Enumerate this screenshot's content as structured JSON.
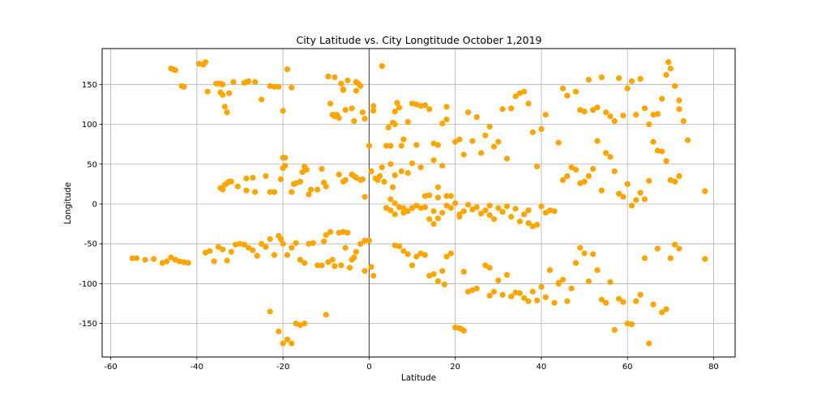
{
  "chart_data": {
    "type": "scatter",
    "title": "City Latitude vs. City Longtitude October 1,2019",
    "xlabel": "Latitude",
    "ylabel": "Longitude",
    "xlim": [
      -62,
      85
    ],
    "ylim": [
      -192,
      195
    ],
    "xticks": [
      -60,
      -40,
      -20,
      0,
      20,
      40,
      60,
      80
    ],
    "yticks": [
      -150,
      -100,
      -50,
      0,
      50,
      100,
      150
    ],
    "grid": true,
    "axvline": 0,
    "color": "#FFA500",
    "points": [
      [
        -46,
        170
      ],
      [
        -45.5,
        169
      ],
      [
        -45,
        168
      ],
      [
        -43.5,
        148
      ],
      [
        -43,
        147
      ],
      [
        -39.5,
        176
      ],
      [
        -38.5,
        175
      ],
      [
        -38,
        178
      ],
      [
        -37.5,
        141
      ],
      [
        -35.5,
        151
      ],
      [
        -35,
        151
      ],
      [
        -34.5,
        151
      ],
      [
        -34.5,
        140
      ],
      [
        -34,
        137
      ],
      [
        -34,
        150
      ],
      [
        -33.5,
        122
      ],
      [
        -33,
        115
      ],
      [
        -32.5,
        139
      ],
      [
        -31.5,
        153
      ],
      [
        -29,
        152
      ],
      [
        -28.5,
        153
      ],
      [
        -28,
        154
      ],
      [
        -26.5,
        153
      ],
      [
        -25,
        131
      ],
      [
        -23,
        148
      ],
      [
        -22,
        147
      ],
      [
        -20,
        117
      ],
      [
        -19,
        169
      ],
      [
        -18,
        146
      ],
      [
        -21,
        147
      ],
      [
        -34.5,
        20
      ],
      [
        -34,
        18
      ],
      [
        -33.5,
        24
      ],
      [
        -33,
        26
      ],
      [
        -32.5,
        28
      ],
      [
        -32,
        28
      ],
      [
        -30.5,
        22
      ],
      [
        -28.5,
        32
      ],
      [
        -28.5,
        17
      ],
      [
        -27,
        33
      ],
      [
        -26.5,
        15
      ],
      [
        -24,
        35
      ],
      [
        -23,
        15
      ],
      [
        -22,
        15
      ],
      [
        -20.5,
        31
      ],
      [
        -20,
        58
      ],
      [
        -19.5,
        58
      ],
      [
        -19.5,
        48
      ],
      [
        -20,
        45
      ],
      [
        -18,
        15
      ],
      [
        -17.5,
        25
      ],
      [
        -17,
        26
      ],
      [
        -16,
        28
      ],
      [
        -15.5,
        40
      ],
      [
        -15,
        47
      ],
      [
        -14.5,
        43
      ],
      [
        -14,
        12
      ],
      [
        -13.5,
        18
      ],
      [
        -12,
        18
      ],
      [
        -11,
        44
      ],
      [
        -10.5,
        27
      ],
      [
        -10,
        22
      ],
      [
        -9,
        126
      ],
      [
        -8.5,
        112
      ],
      [
        -8,
        110
      ],
      [
        -8,
        159
      ],
      [
        -7.5,
        112
      ],
      [
        -7,
        108
      ],
      [
        -6.5,
        151
      ],
      [
        -6,
        144
      ],
      [
        -6,
        143
      ],
      [
        -5.5,
        118
      ],
      [
        -5,
        155
      ],
      [
        -4,
        120
      ],
      [
        -3.5,
        104
      ],
      [
        -3,
        153
      ],
      [
        -3,
        142
      ],
      [
        -2.5,
        151
      ],
      [
        -2,
        148
      ],
      [
        -1.5,
        115
      ],
      [
        -1,
        107
      ],
      [
        -9.5,
        160
      ],
      [
        -7,
        37
      ],
      [
        -6,
        28
      ],
      [
        -5.5,
        30
      ],
      [
        -4,
        37
      ],
      [
        -3.5,
        35
      ],
      [
        -3,
        33
      ],
      [
        -2,
        30
      ],
      [
        -1.5,
        31
      ],
      [
        -1,
        9
      ],
      [
        0,
        73
      ],
      [
        0.5,
        41
      ],
      [
        1,
        117
      ],
      [
        1,
        123
      ],
      [
        1.5,
        32
      ],
      [
        2.5,
        35
      ],
      [
        2,
        30
      ],
      [
        3,
        46
      ],
      [
        3.5,
        28
      ],
      [
        4,
        73
      ],
      [
        4.5,
        96
      ],
      [
        5,
        73
      ],
      [
        5.5,
        102
      ],
      [
        6,
        116
      ],
      [
        6,
        100
      ],
      [
        6.5,
        127
      ],
      [
        7,
        121
      ],
      [
        7.5,
        73
      ],
      [
        8,
        81
      ],
      [
        9,
        103
      ],
      [
        10,
        126
      ],
      [
        11,
        125
      ],
      [
        12,
        123
      ],
      [
        13,
        124
      ],
      [
        14,
        119
      ],
      [
        15,
        76
      ],
      [
        16,
        74
      ],
      [
        17,
        101
      ],
      [
        18,
        106
      ],
      [
        18,
        122
      ],
      [
        3,
        173
      ],
      [
        5,
        50
      ],
      [
        6,
        36
      ],
      [
        7.5,
        41
      ],
      [
        9,
        39
      ],
      [
        10,
        51
      ],
      [
        11,
        74
      ],
      [
        12,
        46
      ],
      [
        13,
        10
      ],
      [
        14,
        11
      ],
      [
        15,
        55
      ],
      [
        16,
        21
      ],
      [
        16,
        8
      ],
      [
        17,
        48
      ],
      [
        18,
        10
      ],
      [
        19,
        10
      ],
      [
        20,
        78
      ],
      [
        21,
        81
      ],
      [
        22,
        62
      ],
      [
        23,
        115
      ],
      [
        24,
        79
      ],
      [
        25,
        109
      ],
      [
        26,
        64
      ],
      [
        27,
        86
      ],
      [
        28,
        97
      ],
      [
        29,
        72
      ],
      [
        30,
        78
      ],
      [
        31,
        119
      ],
      [
        32,
        57
      ],
      [
        33,
        120
      ],
      [
        34,
        135
      ],
      [
        35,
        139
      ],
      [
        36,
        141
      ],
      [
        37,
        126
      ],
      [
        38,
        90
      ],
      [
        39,
        47
      ],
      [
        40,
        94
      ],
      [
        41,
        112
      ],
      [
        4,
        -5
      ],
      [
        5,
        -8
      ],
      [
        5,
        6
      ],
      [
        5.5,
        21
      ],
      [
        6,
        1
      ],
      [
        6,
        -13
      ],
      [
        7,
        -4
      ],
      [
        8,
        -5
      ],
      [
        8,
        -11
      ],
      [
        9,
        -9
      ],
      [
        10,
        -5
      ],
      [
        11,
        -2
      ],
      [
        12,
        -5
      ],
      [
        13,
        -4
      ],
      [
        14,
        -19
      ],
      [
        15,
        -25
      ],
      [
        15,
        -9
      ],
      [
        16,
        -18
      ],
      [
        17,
        -11
      ],
      [
        18,
        -2
      ],
      [
        19,
        -5
      ],
      [
        20,
        1
      ],
      [
        21,
        -13
      ],
      [
        21,
        -16
      ],
      [
        22,
        -9
      ],
      [
        23,
        -1
      ],
      [
        24,
        -7
      ],
      [
        25,
        -4
      ],
      [
        26,
        -12
      ],
      [
        27,
        -8
      ],
      [
        28,
        -2
      ],
      [
        28,
        -14
      ],
      [
        29,
        -19
      ],
      [
        30,
        -5
      ],
      [
        31,
        -10
      ],
      [
        32,
        -3
      ],
      [
        33,
        -16
      ],
      [
        34,
        -6
      ],
      [
        35,
        -22
      ],
      [
        36,
        -13
      ],
      [
        37,
        -8
      ],
      [
        37,
        -24
      ],
      [
        38,
        -28
      ],
      [
        39,
        -26
      ],
      [
        40,
        -3
      ],
      [
        41,
        -11
      ],
      [
        42,
        -8
      ],
      [
        43,
        -9
      ],
      [
        6,
        -52
      ],
      [
        7,
        -53
      ],
      [
        8,
        -59
      ],
      [
        9,
        -63
      ],
      [
        10,
        -77
      ],
      [
        11,
        -66
      ],
      [
        12,
        -62
      ],
      [
        13,
        -64
      ],
      [
        14,
        -90
      ],
      [
        15,
        -88
      ],
      [
        16,
        -97
      ],
      [
        17,
        -84
      ],
      [
        17.5,
        -101
      ],
      [
        18,
        -66
      ],
      [
        19,
        -62
      ],
      [
        20,
        -155
      ],
      [
        21,
        -156
      ],
      [
        21.5,
        -157
      ],
      [
        22,
        -159
      ],
      [
        22,
        -85
      ],
      [
        23,
        -110
      ],
      [
        24,
        -108
      ],
      [
        25,
        -106
      ],
      [
        27,
        -77
      ],
      [
        28,
        -80
      ],
      [
        28,
        -115
      ],
      [
        29,
        -110
      ],
      [
        30,
        -96
      ],
      [
        31,
        -114
      ],
      [
        32,
        -89
      ],
      [
        33,
        -116
      ],
      [
        34,
        -111
      ],
      [
        35,
        -112
      ],
      [
        36,
        -118
      ],
      [
        37,
        -122
      ],
      [
        38,
        -110
      ],
      [
        39,
        -121
      ],
      [
        40,
        -104
      ],
      [
        41,
        -117
      ],
      [
        42,
        -83
      ],
      [
        43,
        -124
      ],
      [
        44,
        -100
      ],
      [
        -2,
        -50
      ],
      [
        -1,
        -46
      ],
      [
        0,
        -46
      ],
      [
        0.5,
        -79
      ],
      [
        1,
        -90
      ],
      [
        -1,
        -84
      ],
      [
        -3,
        -60
      ],
      [
        -3.5,
        -67
      ],
      [
        -4,
        -70
      ],
      [
        -4.5,
        -80
      ],
      [
        -5,
        -36
      ],
      [
        -5.5,
        -55
      ],
      [
        -6,
        -35
      ],
      [
        -6.5,
        -77
      ],
      [
        -7,
        -36
      ],
      [
        -8,
        -78
      ],
      [
        -8.5,
        -70
      ],
      [
        -9,
        -35
      ],
      [
        -9.5,
        -73
      ],
      [
        -10,
        -39
      ],
      [
        -10.5,
        -47
      ],
      [
        -11,
        -77
      ],
      [
        -12,
        -77
      ],
      [
        -13,
        -49
      ],
      [
        -14,
        -50
      ],
      [
        -15,
        -74
      ],
      [
        -16,
        -70
      ],
      [
        -17,
        -49
      ],
      [
        -18,
        -55
      ],
      [
        -19,
        -64
      ],
      [
        -20,
        -50
      ],
      [
        -20.5,
        -44
      ],
      [
        -21,
        -40
      ],
      [
        -22,
        -64
      ],
      [
        -23,
        -44
      ],
      [
        -24,
        -54
      ],
      [
        -25,
        -50
      ],
      [
        -26,
        -65
      ],
      [
        -27,
        -58
      ],
      [
        -28,
        -55
      ],
      [
        -29,
        -51
      ],
      [
        -30,
        -50
      ],
      [
        -31,
        -51
      ],
      [
        -32,
        -60
      ],
      [
        -33,
        -71
      ],
      [
        -34,
        -57
      ],
      [
        -35,
        -54
      ],
      [
        -36,
        -72
      ],
      [
        -37,
        -59
      ],
      [
        -38,
        -61
      ],
      [
        -42,
        -74
      ],
      [
        -43,
        -73
      ],
      [
        -44,
        -72
      ],
      [
        -45,
        -70
      ],
      [
        -46,
        -67
      ],
      [
        -47,
        -72
      ],
      [
        -48,
        -74
      ],
      [
        -50,
        -69
      ],
      [
        -52,
        -70
      ],
      [
        -54,
        -68
      ],
      [
        -55,
        -68
      ],
      [
        -23,
        -135
      ],
      [
        -21,
        -160
      ],
      [
        -20,
        -175
      ],
      [
        -19,
        -170
      ],
      [
        -18,
        -175
      ],
      [
        -17,
        -150
      ],
      [
        -16,
        -152
      ],
      [
        -15,
        -150
      ],
      [
        -10,
        -139
      ],
      [
        45,
        145
      ],
      [
        46,
        136
      ],
      [
        48,
        141
      ],
      [
        49,
        118
      ],
      [
        50,
        116
      ],
      [
        51,
        156
      ],
      [
        52,
        118
      ],
      [
        53,
        121
      ],
      [
        54,
        159
      ],
      [
        55,
        115
      ],
      [
        56,
        110
      ],
      [
        57,
        104
      ],
      [
        58,
        158
      ],
      [
        59,
        111
      ],
      [
        60,
        145
      ],
      [
        61,
        154
      ],
      [
        62,
        112
      ],
      [
        63,
        157
      ],
      [
        64,
        120
      ],
      [
        65,
        100
      ],
      [
        66,
        112
      ],
      [
        67,
        113
      ],
      [
        68,
        132
      ],
      [
        69,
        162
      ],
      [
        69.5,
        178
      ],
      [
        70,
        170
      ],
      [
        71,
        148
      ],
      [
        72,
        130
      ],
      [
        72,
        119
      ],
      [
        73,
        104
      ],
      [
        44,
        77
      ],
      [
        45,
        30
      ],
      [
        46,
        35
      ],
      [
        47,
        46
      ],
      [
        48,
        43
      ],
      [
        49,
        26
      ],
      [
        50,
        28
      ],
      [
        51,
        35
      ],
      [
        52,
        44
      ],
      [
        53,
        79
      ],
      [
        54,
        17
      ],
      [
        55,
        64
      ],
      [
        56,
        59
      ],
      [
        57,
        41
      ],
      [
        58,
        13
      ],
      [
        59,
        9
      ],
      [
        60,
        25
      ],
      [
        61,
        -2
      ],
      [
        62,
        5
      ],
      [
        63,
        14
      ],
      [
        64,
        6
      ],
      [
        65,
        29
      ],
      [
        66,
        78
      ],
      [
        67,
        67
      ],
      [
        68,
        66
      ],
      [
        69,
        54
      ],
      [
        70,
        30
      ],
      [
        71,
        28
      ],
      [
        72,
        35
      ],
      [
        74,
        80
      ],
      [
        78,
        16
      ],
      [
        44,
        -99
      ],
      [
        45,
        -95
      ],
      [
        46,
        -122
      ],
      [
        47,
        -106
      ],
      [
        48,
        -74
      ],
      [
        49,
        -55
      ],
      [
        50,
        -62
      ],
      [
        51,
        -97
      ],
      [
        52,
        -63
      ],
      [
        53,
        -83
      ],
      [
        54,
        -120
      ],
      [
        55,
        -124
      ],
      [
        56,
        -98
      ],
      [
        57,
        -158
      ],
      [
        58,
        -119
      ],
      [
        59,
        -123
      ],
      [
        60,
        -150
      ],
      [
        61,
        -151
      ],
      [
        62,
        -122
      ],
      [
        63,
        -114
      ],
      [
        64,
        -68
      ],
      [
        65,
        -175
      ],
      [
        66,
        -126
      ],
      [
        67,
        -56
      ],
      [
        68,
        -136
      ],
      [
        69,
        -132
      ],
      [
        70,
        -68
      ],
      [
        71,
        -51
      ],
      [
        72,
        -56
      ],
      [
        78,
        -69
      ]
    ]
  }
}
